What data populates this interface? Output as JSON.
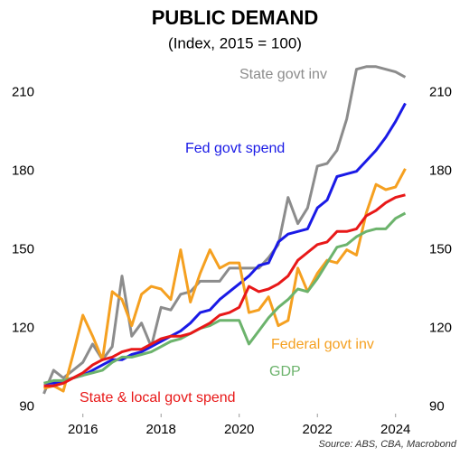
{
  "chart_data": {
    "type": "line",
    "title": "PUBLIC DEMAND",
    "subtitle": "(Index, 2015 = 100)",
    "source": "Source: ABS, CBA, Macrobond",
    "x": [
      2015.0,
      2015.25,
      2015.5,
      2015.75,
      2016.0,
      2016.25,
      2016.5,
      2016.75,
      2017.0,
      2017.25,
      2017.5,
      2017.75,
      2018.0,
      2018.25,
      2018.5,
      2018.75,
      2019.0,
      2019.25,
      2019.5,
      2019.75,
      2020.0,
      2020.25,
      2020.5,
      2020.75,
      2021.0,
      2021.25,
      2021.5,
      2021.75,
      2022.0,
      2022.25,
      2022.5,
      2022.75,
      2023.0,
      2023.25,
      2023.5,
      2023.75,
      2024.0,
      2024.25
    ],
    "series": [
      {
        "name": "State govt inv",
        "color": "#8c8c8c",
        "values": [
          95,
          104,
          101,
          104,
          107,
          114,
          108,
          113,
          140,
          117,
          122,
          113,
          128,
          127,
          133,
          134,
          138,
          138,
          138,
          143,
          143,
          143,
          143,
          147,
          152,
          170,
          160,
          166,
          182,
          183,
          188,
          200,
          219,
          220,
          220,
          219,
          218,
          216
        ]
      },
      {
        "name": "Fed govt spend",
        "color": "#1a1ae6",
        "values": [
          99,
          99,
          100,
          101,
          102,
          104,
          106,
          108,
          108,
          110,
          111,
          113,
          115,
          117,
          119,
          122,
          126,
          127,
          131,
          134,
          137,
          140,
          144,
          145,
          153,
          156,
          157,
          158,
          166,
          169,
          178,
          179,
          180,
          184,
          188,
          193,
          199,
          206
        ]
      },
      {
        "name": "Federal govt inv",
        "color": "#f5a020",
        "values": [
          97,
          98,
          96,
          110,
          125,
          117,
          108,
          134,
          131,
          121,
          133,
          136,
          135,
          131,
          150,
          130,
          141,
          150,
          143,
          145,
          145,
          126,
          127,
          132,
          121,
          123,
          143,
          134,
          141,
          146,
          145,
          150,
          148,
          164,
          175,
          173,
          174,
          181
        ]
      },
      {
        "name": "GDP",
        "color": "#6cb36c",
        "values": [
          99,
          100,
          100,
          101,
          102,
          103,
          104,
          107,
          109,
          109,
          110,
          111,
          113,
          115,
          116,
          118,
          120,
          121,
          123,
          123,
          123,
          114,
          119,
          124,
          128,
          131,
          135,
          134,
          139,
          145,
          151,
          152,
          155,
          157,
          158,
          158,
          162,
          164
        ]
      },
      {
        "name": "State & local govt spend",
        "color": "#e81818",
        "values": [
          98,
          98,
          99,
          101,
          103,
          106,
          108,
          109,
          111,
          112,
          112,
          114,
          116,
          117,
          117,
          118,
          120,
          122,
          125,
          126,
          128,
          136,
          134,
          135,
          137,
          140,
          146,
          149,
          152,
          153,
          157,
          157,
          158,
          163,
          165,
          168,
          170,
          171
        ]
      }
    ],
    "xlim": [
      2014.85,
      2024.7
    ],
    "xticks": [
      2016,
      2018,
      2020,
      2022,
      2024
    ],
    "ylim": [
      86,
      222
    ],
    "yticks": [
      90,
      120,
      150,
      180,
      210
    ],
    "grid": false
  }
}
